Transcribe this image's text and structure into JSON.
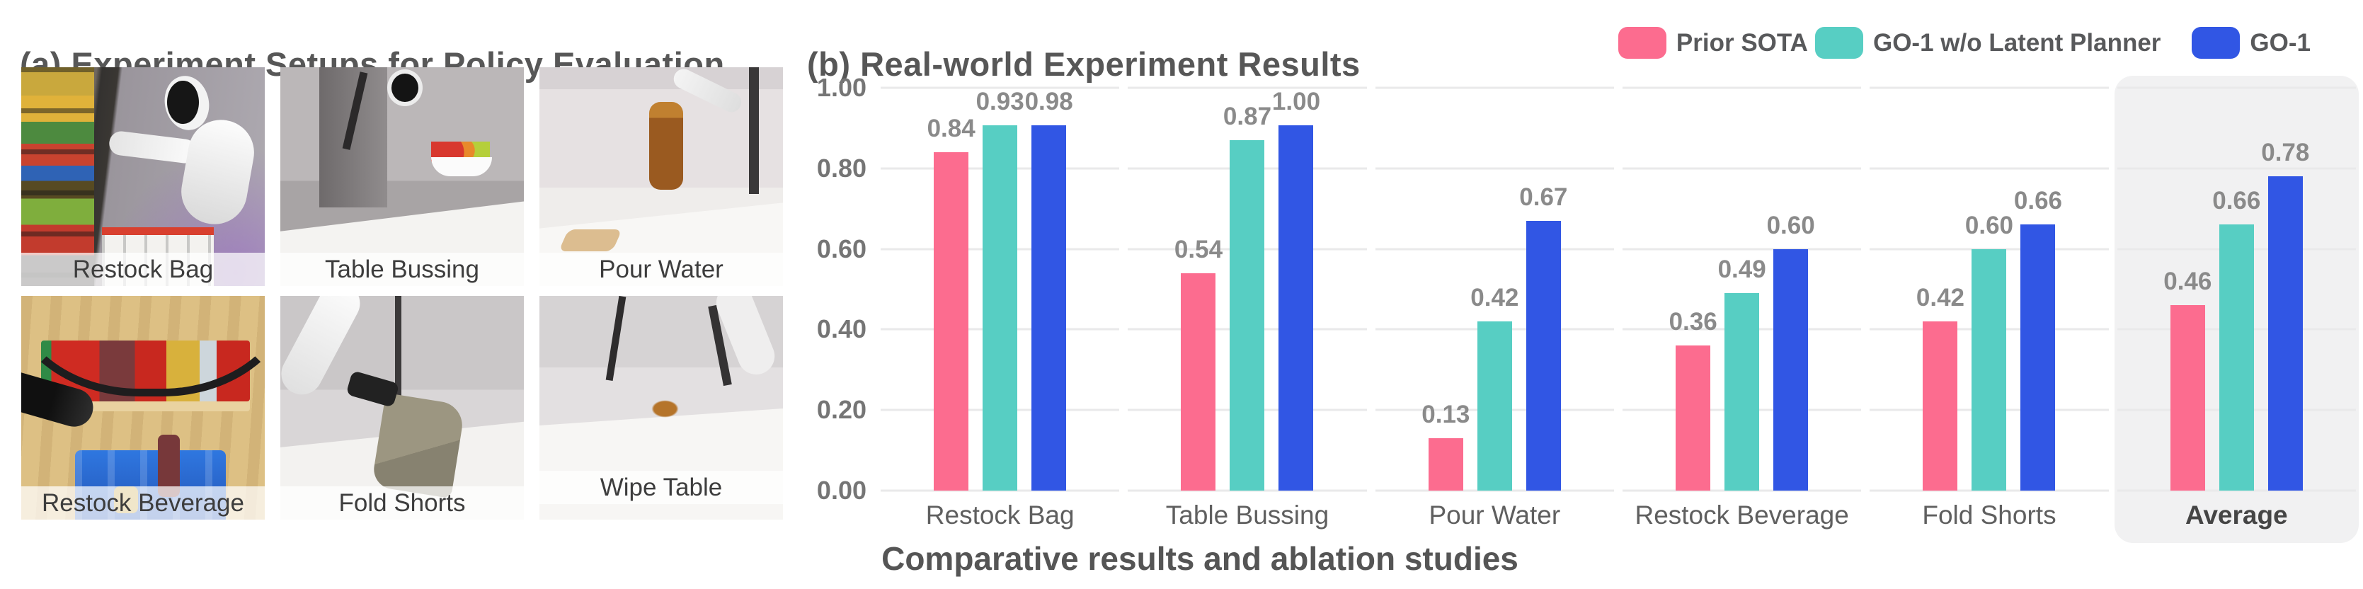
{
  "panel_a": {
    "title": "(a) Experiment Setups for Policy Evaluation",
    "photos": [
      {
        "label": "Restock Bag"
      },
      {
        "label": "Table Bussing"
      },
      {
        "label": "Pour Water"
      },
      {
        "label": "Restock Beverage"
      },
      {
        "label": "Fold Shorts"
      },
      {
        "label": "Wipe Table"
      }
    ]
  },
  "panel_b": {
    "title": "(b) Real-world Experiment Results",
    "caption": "Comparative results and ablation studies"
  },
  "chart_data": {
    "type": "bar",
    "title": "(b) Real-world Experiment Results",
    "categories": [
      "Restock Bag",
      "Table Bussing",
      "Pour Water",
      "Restock Beverage",
      "Fold Shorts",
      "Average"
    ],
    "series": [
      {
        "name": "Prior SOTA",
        "color": "#FC6C8F",
        "values": [
          0.84,
          0.54,
          0.13,
          0.36,
          0.42,
          0.46
        ]
      },
      {
        "name": "GO-1 w/o Latent Planner",
        "color": "#57CEC3",
        "values": [
          0.93,
          0.87,
          0.42,
          0.49,
          0.6,
          0.66
        ]
      },
      {
        "name": "GO-1",
        "color": "#3156E4",
        "values": [
          0.98,
          1.0,
          0.67,
          0.6,
          0.66,
          0.78
        ]
      }
    ],
    "ylim": [
      0,
      1.0
    ],
    "yticks": [
      "1.00",
      "0.80",
      "0.60",
      "0.40",
      "0.20",
      "0.00"
    ],
    "grid": true,
    "gridline_color": "#E9E9EA",
    "value_labels": true,
    "value_label_color": "#8A8A8A",
    "legend_position": "top-right",
    "highlight_category": "Average",
    "highlight_color": "#F1F1F2",
    "xlabel": "",
    "ylabel": ""
  }
}
